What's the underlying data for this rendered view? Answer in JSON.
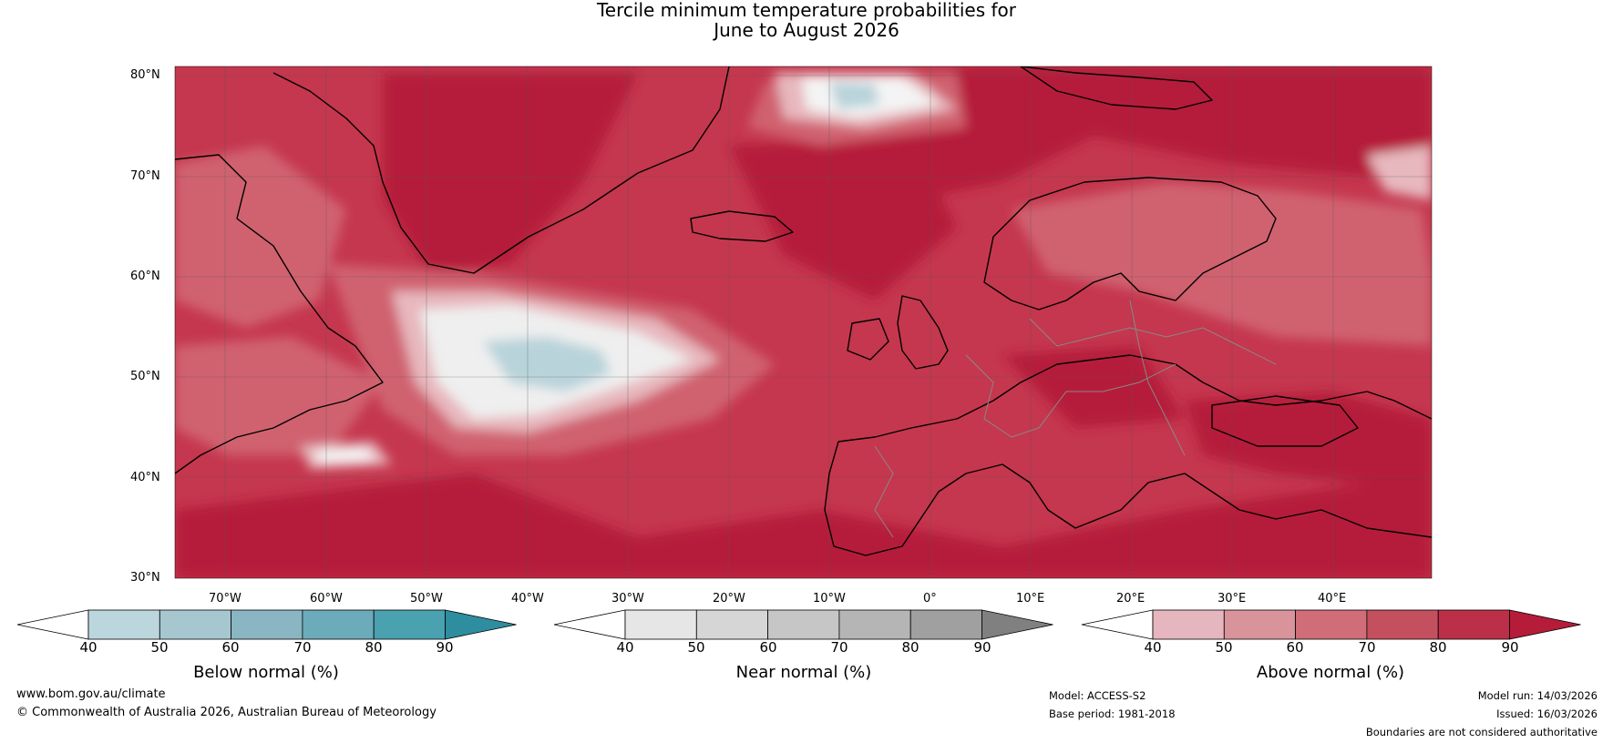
{
  "title": {
    "line1": "Tercile minimum temperature probabilities for",
    "line2": "June to August 2026"
  },
  "map": {
    "lat_labels": [
      "80°N",
      "70°N",
      "60°N",
      "50°N",
      "40°N",
      "30°N"
    ],
    "lon_labels": [
      "70°W",
      "60°W",
      "50°W",
      "40°W",
      "30°W",
      "20°W",
      "10°W",
      "0°",
      "10°E",
      "20°E",
      "30°E",
      "40°E"
    ],
    "colors": {
      "above_90": "#b51c3a",
      "above_80": "#c5374e",
      "above_70": "#d0626f",
      "above_60": "#db8c95",
      "above_50": "#e7b8be",
      "below_50": "#b8d3da",
      "near_50": "#dedede",
      "coast": "#000000",
      "border": "#888888"
    }
  },
  "colorbars": [
    {
      "label": "Below normal (%)",
      "ticks": [
        "40",
        "50",
        "60",
        "70",
        "80",
        "90"
      ],
      "colors": [
        "#bcd6dd",
        "#a6c7cf",
        "#8ab5c2",
        "#6babba",
        "#4aa1b0",
        "#2e8d9e"
      ]
    },
    {
      "label": "Near normal (%)",
      "ticks": [
        "40",
        "50",
        "60",
        "70",
        "80",
        "90"
      ],
      "colors": [
        "#e6e6e6",
        "#d6d6d6",
        "#c6c6c6",
        "#b5b5b5",
        "#a0a0a0",
        "#808080"
      ]
    },
    {
      "label": "Above normal (%)",
      "ticks": [
        "40",
        "50",
        "60",
        "70",
        "80",
        "90"
      ],
      "colors": [
        "#e5b6bd",
        "#d9939b",
        "#cf6d78",
        "#c44f5e",
        "#bb3048",
        "#b51c3a"
      ]
    }
  ],
  "footer": {
    "site": "www.bom.gov.au/climate",
    "copyright": "© Commonwealth of Australia 2026, Australian Bureau of Meteorology",
    "model": "Model: ACCESS-S2",
    "base_period": "Base period: 1981-2018",
    "model_run": "Model run: 14/03/2026",
    "issued": "Issued: 16/03/2026",
    "disclaimer": "Boundaries are not considered authoritative"
  }
}
